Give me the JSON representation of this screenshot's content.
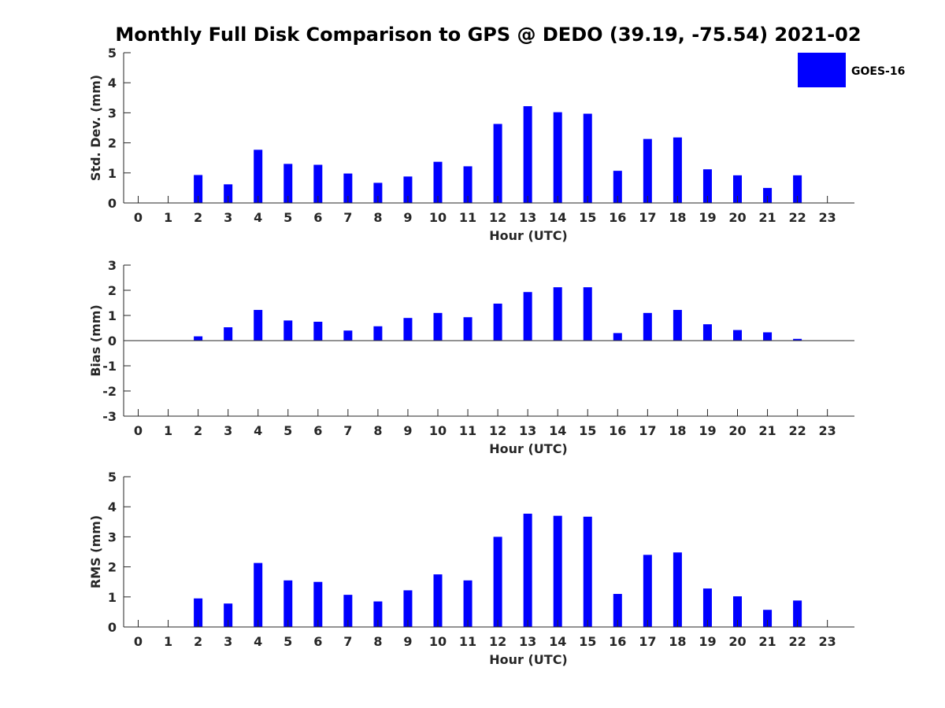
{
  "title": "Monthly Full Disk Comparison to GPS @ DEDO (39.19, -75.54) 2021-02",
  "legend": {
    "label": "GOES-16",
    "color": "#0000ff"
  },
  "chart_data": [
    {
      "type": "bar",
      "xlabel": "Hour (UTC)",
      "ylabel": "Std. Dev. (mm)",
      "ylim": [
        0,
        5
      ],
      "yticks": [
        0,
        1,
        2,
        3,
        4,
        5
      ],
      "categories": [
        0,
        1,
        2,
        3,
        4,
        5,
        6,
        7,
        8,
        9,
        10,
        11,
        12,
        13,
        14,
        15,
        16,
        17,
        18,
        19,
        20,
        21,
        22,
        23
      ],
      "series": [
        {
          "name": "GOES-16",
          "values": [
            null,
            null,
            0.93,
            0.62,
            1.77,
            1.3,
            1.27,
            0.98,
            0.67,
            0.88,
            1.37,
            1.22,
            2.63,
            3.22,
            3.02,
            2.97,
            1.07,
            2.13,
            2.18,
            1.12,
            0.92,
            0.5,
            0.92,
            null
          ]
        }
      ]
    },
    {
      "type": "bar",
      "xlabel": "Hour (UTC)",
      "ylabel": "Bias (mm)",
      "ylim": [
        -3,
        3
      ],
      "yticks": [
        -3,
        -2,
        -1,
        0,
        1,
        2,
        3
      ],
      "categories": [
        0,
        1,
        2,
        3,
        4,
        5,
        6,
        7,
        8,
        9,
        10,
        11,
        12,
        13,
        14,
        15,
        16,
        17,
        18,
        19,
        20,
        21,
        22,
        23
      ],
      "series": [
        {
          "name": "GOES-16",
          "values": [
            null,
            null,
            0.17,
            0.53,
            1.22,
            0.8,
            0.75,
            0.4,
            0.57,
            0.9,
            1.1,
            0.93,
            1.47,
            1.93,
            2.12,
            2.12,
            0.3,
            1.1,
            1.22,
            0.65,
            0.42,
            0.33,
            0.07,
            null
          ]
        }
      ]
    },
    {
      "type": "bar",
      "xlabel": "Hour (UTC)",
      "ylabel": "RMS (mm)",
      "ylim": [
        0,
        5
      ],
      "yticks": [
        0,
        1,
        2,
        3,
        4,
        5
      ],
      "categories": [
        0,
        1,
        2,
        3,
        4,
        5,
        6,
        7,
        8,
        9,
        10,
        11,
        12,
        13,
        14,
        15,
        16,
        17,
        18,
        19,
        20,
        21,
        22,
        23
      ],
      "series": [
        {
          "name": "GOES-16",
          "values": [
            null,
            null,
            0.95,
            0.78,
            2.13,
            1.55,
            1.5,
            1.07,
            0.85,
            1.22,
            1.75,
            1.55,
            3.0,
            3.77,
            3.7,
            3.67,
            1.1,
            2.4,
            2.48,
            1.28,
            1.02,
            0.57,
            0.88,
            null
          ]
        }
      ]
    }
  ]
}
